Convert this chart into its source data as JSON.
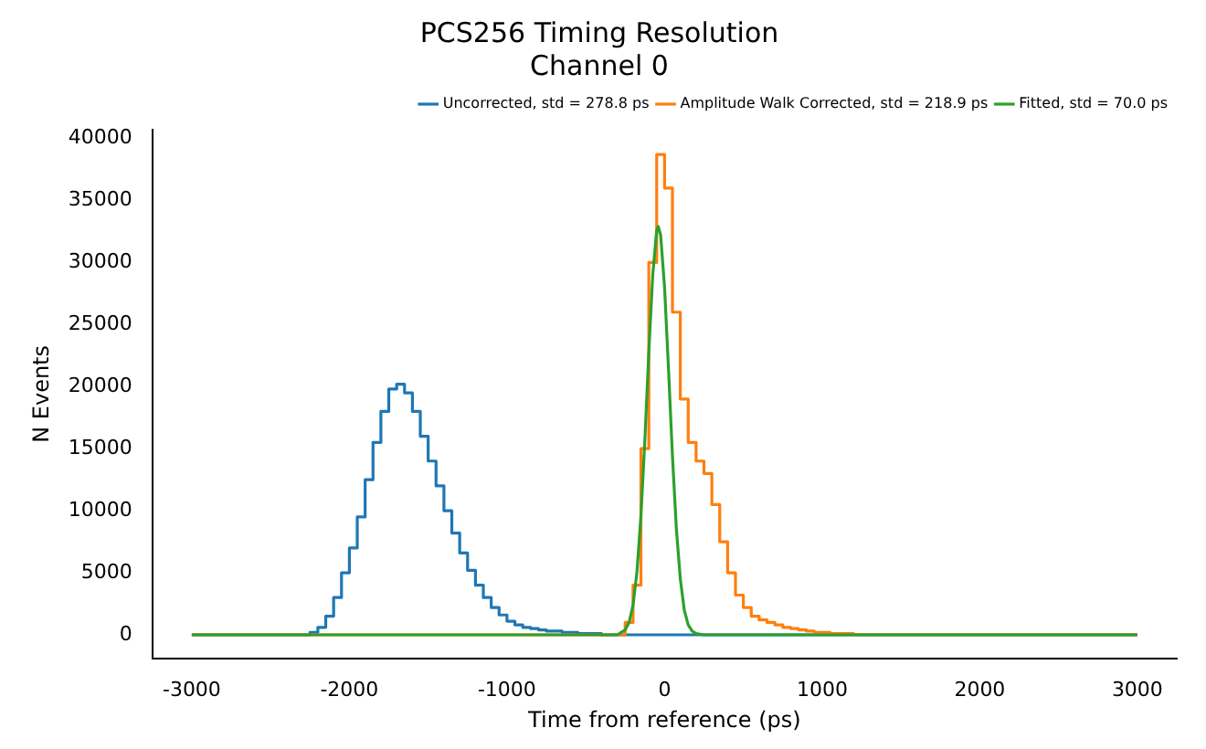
{
  "chart_data": {
    "type": "histogram",
    "title": "PCS256 Timing Resolution",
    "subtitle": "Channel 0",
    "xlabel": "Time from reference (ps)",
    "ylabel": "N Events",
    "bins": [
      -3000,
      -2950,
      -2900,
      -2850,
      -2800,
      -2750,
      -2700,
      -2650,
      -2600,
      -2550,
      -2500,
      -2450,
      -2400,
      -2350,
      -2300,
      -2250,
      -2200,
      -2150,
      -2100,
      -2050,
      -2000,
      -1950,
      -1900,
      -1850,
      -1800,
      -1750,
      -1700,
      -1650,
      -1600,
      -1550,
      -1500,
      -1450,
      -1400,
      -1350,
      -1300,
      -1250,
      -1200,
      -1150,
      -1100,
      -1050,
      -1000,
      -950,
      -900,
      -850,
      -800,
      -750,
      -700,
      -650,
      -600,
      -550,
      -500,
      -450,
      -400,
      -350,
      -300,
      -250,
      -200,
      -150,
      -100,
      -50,
      0,
      50,
      100,
      150,
      200,
      250,
      300,
      350,
      400,
      450,
      500,
      550,
      600,
      650,
      700,
      750,
      800,
      850,
      900,
      950,
      1000,
      1050,
      1100,
      1150,
      1200,
      1250,
      1300,
      1350,
      1400,
      1450,
      1500,
      1550,
      1600,
      1650,
      1700,
      1750,
      1800,
      1850,
      1900,
      1950,
      2000,
      2050,
      2100,
      2150,
      2200,
      2250,
      2300,
      2350,
      2400,
      2450,
      2500,
      2550,
      2600,
      2650,
      2700,
      2750,
      2800,
      2850,
      2900,
      2950,
      3000
    ],
    "series": [
      {
        "name": "Uncorrected, std = 278.8 ps",
        "color": "#1f77b4",
        "values": [
          0,
          0,
          0,
          0,
          0,
          0,
          0,
          0,
          0,
          0,
          0,
          0,
          0,
          0,
          0,
          200,
          600,
          1500,
          3000,
          5000,
          7000,
          9500,
          12500,
          15500,
          18000,
          19800,
          20200,
          19500,
          18000,
          16000,
          14000,
          12000,
          10000,
          8200,
          6600,
          5200,
          4000,
          3000,
          2200,
          1600,
          1100,
          800,
          600,
          500,
          400,
          300,
          300,
          200,
          200,
          100,
          100,
          100,
          0,
          0,
          0,
          0,
          0,
          0,
          0,
          0,
          0,
          0,
          0,
          0,
          0,
          0,
          0,
          0,
          0,
          0,
          0,
          0,
          0,
          0,
          0,
          0,
          0,
          0,
          0,
          0,
          0,
          0,
          0,
          0,
          0,
          0,
          0,
          0,
          0,
          0,
          0,
          0,
          0,
          0,
          0,
          0,
          0,
          0,
          0,
          0,
          0,
          0,
          0,
          0,
          0,
          0,
          0,
          0,
          0,
          0,
          0,
          0,
          0,
          0,
          0,
          0,
          0,
          0,
          0,
          0
        ]
      },
      {
        "name": "Amplitude Walk Corrected, std = 218.9 ps",
        "color": "#ff7f0e",
        "values": [
          0,
          0,
          0,
          0,
          0,
          0,
          0,
          0,
          0,
          0,
          0,
          0,
          0,
          0,
          0,
          0,
          0,
          0,
          0,
          0,
          0,
          0,
          0,
          0,
          0,
          0,
          0,
          0,
          0,
          0,
          0,
          0,
          0,
          0,
          0,
          0,
          0,
          0,
          0,
          0,
          0,
          0,
          0,
          0,
          0,
          0,
          0,
          0,
          0,
          0,
          0,
          0,
          0,
          0,
          0,
          1000,
          4000,
          15000,
          30000,
          38700,
          36000,
          26000,
          19000,
          15500,
          14000,
          13000,
          10500,
          7500,
          5000,
          3200,
          2200,
          1500,
          1200,
          1000,
          800,
          600,
          500,
          400,
          300,
          200,
          200,
          100,
          100,
          100,
          0,
          0,
          0,
          0,
          0,
          0,
          0,
          0,
          0,
          0,
          0,
          0,
          0,
          0,
          0,
          0,
          0,
          0,
          0,
          0,
          0,
          0,
          0,
          0,
          0,
          0,
          0,
          0,
          0,
          0,
          0,
          0,
          0,
          0,
          0,
          0
        ]
      },
      {
        "name": "Fitted, std = 70.0 ps",
        "color": "#2ca02c",
        "type": "line",
        "x": [
          -3000,
          -300,
          -250,
          -225,
          -200,
          -175,
          -150,
          -125,
          -100,
          -75,
          -50,
          -40,
          -25,
          0,
          25,
          50,
          75,
          100,
          125,
          150,
          175,
          200,
          250,
          3000
        ],
        "values": [
          0,
          0,
          400,
          1000,
          2400,
          5100,
          9600,
          15700,
          22800,
          29000,
          32600,
          32900,
          32200,
          28000,
          21400,
          14400,
          8500,
          4500,
          2000,
          800,
          300,
          100,
          0,
          0
        ]
      }
    ],
    "xlim": [
      -3250,
      3250
    ],
    "ylim": [
      -1900,
      40700
    ],
    "xticks": [
      -3000,
      -2000,
      -1000,
      0,
      1000,
      2000,
      3000
    ],
    "yticks": [
      0,
      5000,
      10000,
      15000,
      20000,
      25000,
      30000,
      35000,
      40000
    ],
    "legend": "top right"
  }
}
